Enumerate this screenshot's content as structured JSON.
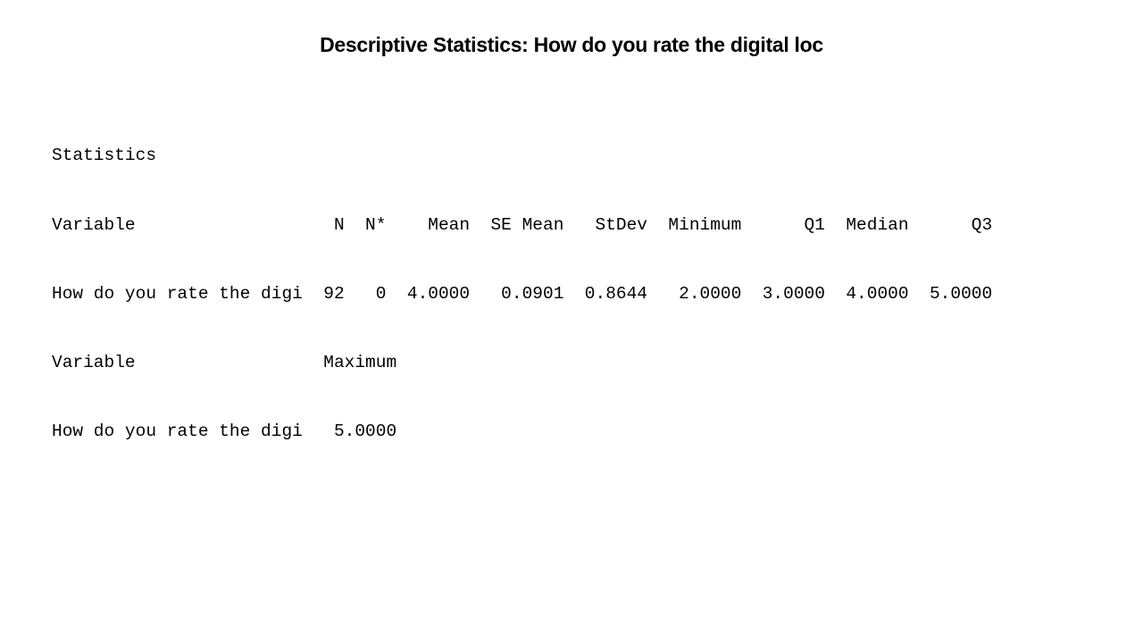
{
  "slide": {
    "title": "Descriptive Statistics: How do you rate the digital loc"
  },
  "output": {
    "section_label": "Statistics",
    "header_row_1": "Variable                   N  N*    Mean  SE Mean   StDev  Minimum      Q1  Median      Q3",
    "data_row_1": "How do you rate the digi  92   0  4.0000   0.0901  0.8644   2.0000  3.0000  4.0000  5.0000",
    "header_row_2": "Variable                  Maximum",
    "data_row_2": "How do you rate the digi   5.0000"
  }
}
